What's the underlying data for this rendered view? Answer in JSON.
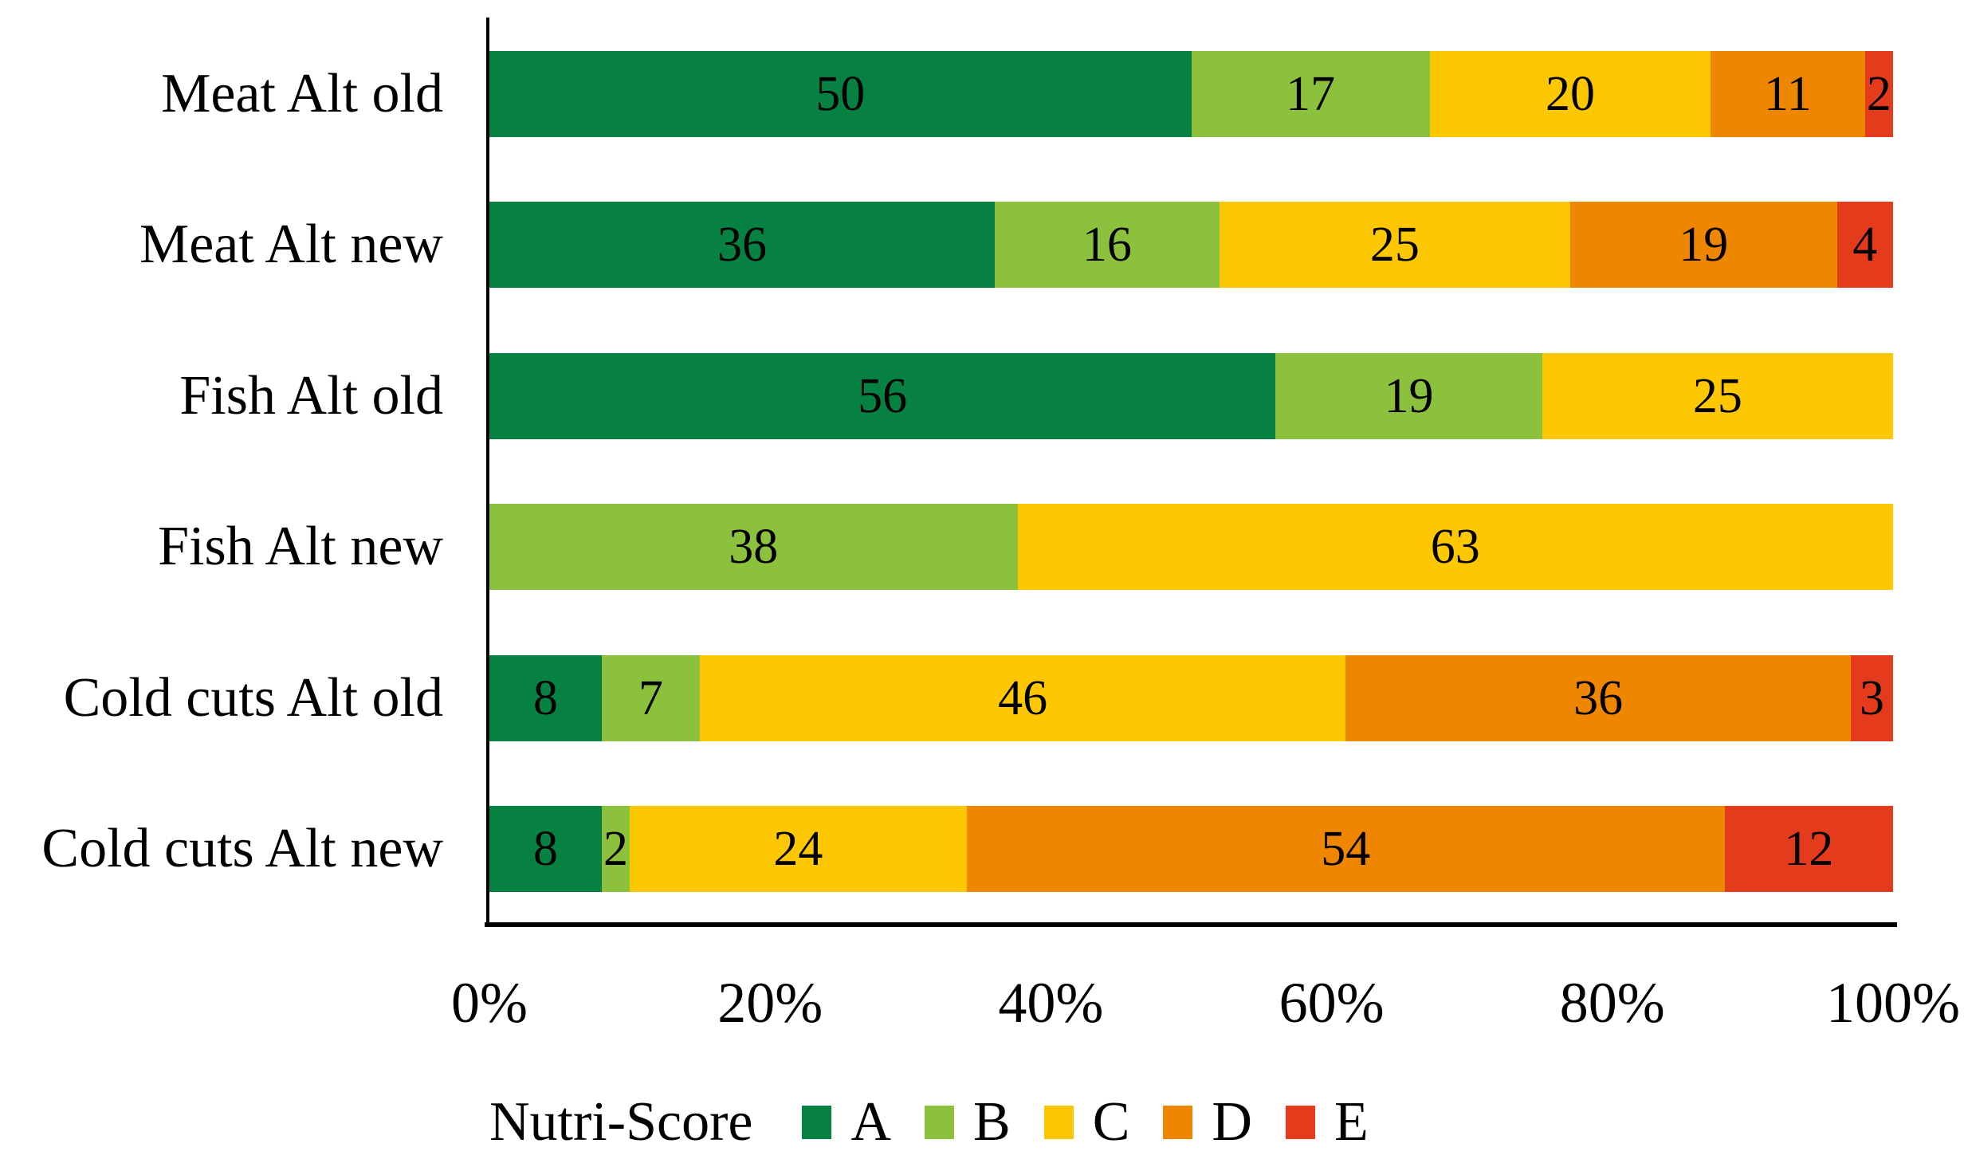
{
  "chart_data": {
    "type": "bar",
    "subtype": "stacked-horizontal-100percent",
    "title": "",
    "legend_title": "Nutri-Score",
    "legend_position": "bottom",
    "grid": false,
    "x_axis": {
      "range_percent": [
        0,
        100
      ],
      "ticks": [
        "0%",
        "20%",
        "40%",
        "60%",
        "80%",
        "100%"
      ]
    },
    "categories": [
      "Meat Alt old",
      "Meat Alt new",
      "Fish Alt old",
      "Fish Alt new",
      "Cold cuts Alt old",
      "Cold cuts Alt new"
    ],
    "series": [
      {
        "name": "A",
        "color": "#068141",
        "values": [
          50,
          36,
          56,
          0,
          8,
          8
        ]
      },
      {
        "name": "B",
        "color": "#8CC13D",
        "values": [
          17,
          16,
          19,
          38,
          7,
          2
        ]
      },
      {
        "name": "C",
        "color": "#FDC801",
        "values": [
          20,
          25,
          25,
          63,
          46,
          24
        ]
      },
      {
        "name": "D",
        "color": "#EF8600",
        "values": [
          11,
          19,
          0,
          0,
          36,
          54
        ]
      },
      {
        "name": "E",
        "color": "#E53B1D",
        "values": [
          2,
          4,
          0,
          0,
          3,
          12
        ]
      }
    ]
  },
  "colors": {
    "axis": "#000000",
    "label_text": "#000000",
    "background": "#FFFFFF"
  }
}
